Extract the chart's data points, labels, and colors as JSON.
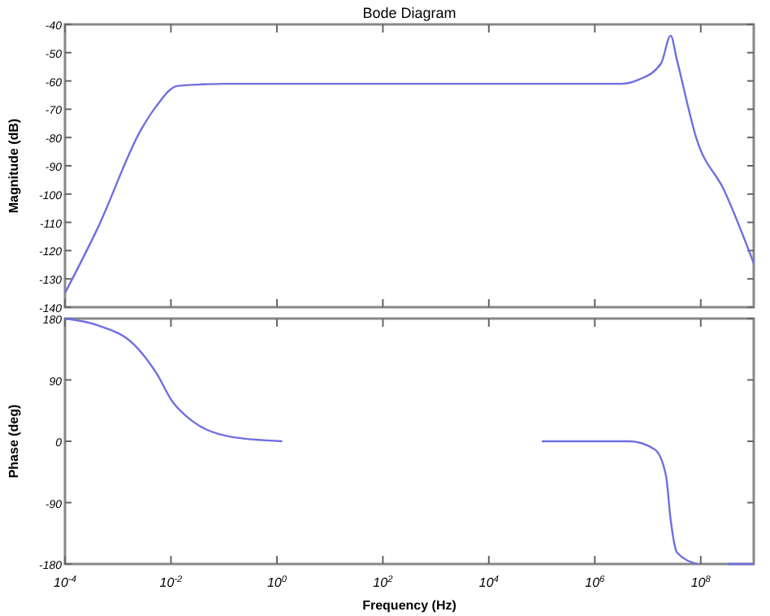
{
  "chart_data": [
    {
      "type": "line",
      "title": "Bode Diagram",
      "ylabel": "Magnitude (dB)",
      "tick_labels": "y",
      "grid": false,
      "log": "x",
      "xlim": [
        0.0001,
        1000000000.0
      ],
      "xticks": [
        {
          "value": 0.0001,
          "label": null
        },
        {
          "value": 0.01,
          "label": null
        },
        {
          "value": 1,
          "label": null
        },
        {
          "value": 100.0,
          "label": null
        },
        {
          "value": 10000.0,
          "label": null
        },
        {
          "value": 1000000.0,
          "label": null
        },
        {
          "value": 100000000.0,
          "label": null
        }
      ],
      "ylim": [
        -140,
        -40
      ],
      "yticks": [
        -140,
        -130,
        -120,
        -110,
        -100,
        -90,
        -80,
        -70,
        -60,
        -50,
        -40
      ],
      "series": [
        {
          "color": "#6f6fe0",
          "x": [
            0.0001,
            0.00042,
            0.0027,
            0.0054,
            0.013,
            0.032,
            0.1,
            1,
            100.0,
            10000.0,
            1000000.0,
            3200000.0,
            6800000.0,
            17800000.0,
            27000000.0,
            35500000.0,
            85000000.0,
            275000000.0,
            1000000000.0
          ],
          "values": [
            -135,
            -111.8,
            -77.4,
            -68.7,
            -61.8,
            -61.3,
            -61,
            -61,
            -61,
            -61,
            -61,
            -61,
            -59.5,
            -53.8,
            -44,
            -52.6,
            -81,
            -98.6,
            -124.5
          ]
        }
      ]
    },
    {
      "type": "line",
      "xlabel": "Frequency (Hz)",
      "ylabel": "Phase (deg)",
      "grid": false,
      "log": "x",
      "xlim": [
        0.0001,
        1000000000.0
      ],
      "xticks": [
        {
          "value": 0.0001,
          "label": "10$^{-4}$"
        },
        {
          "value": 0.01,
          "label": "10$^{-2}$"
        },
        {
          "value": 1,
          "label": "10$^{0}$"
        },
        {
          "value": 100.0,
          "label": "10$^{2}$"
        },
        {
          "value": 10000.0,
          "label": "10$^{4}$"
        },
        {
          "value": 1000000.0,
          "label": "10$^{6}$"
        },
        {
          "value": 100000000.0,
          "label": "10$^{8}$"
        }
      ],
      "ylim": [
        -180,
        180
      ],
      "yticks": [
        -180,
        -90,
        0,
        90,
        180
      ],
      "series": [
        {
          "color": "#6f6fe0",
          "x": [
            0.0001,
            0.00042,
            0.002,
            0.0054,
            0.0105,
            0.026,
            0.126,
            1.26,
            1300.0,
            100000.0,
            4500000.0,
            13500000.0,
            22000000.0,
            27000000.0,
            35500000.0,
            85000000.0,
            150000000.0,
            320000000.0,
            1000000000.0
          ],
          "values": [
            180,
            170,
            142,
            99,
            59,
            29,
            7,
            0,
            null,
            0,
            0,
            -12,
            -50,
            -115,
            -163,
            -180,
            null,
            -180,
            -180
          ]
        }
      ]
    }
  ]
}
